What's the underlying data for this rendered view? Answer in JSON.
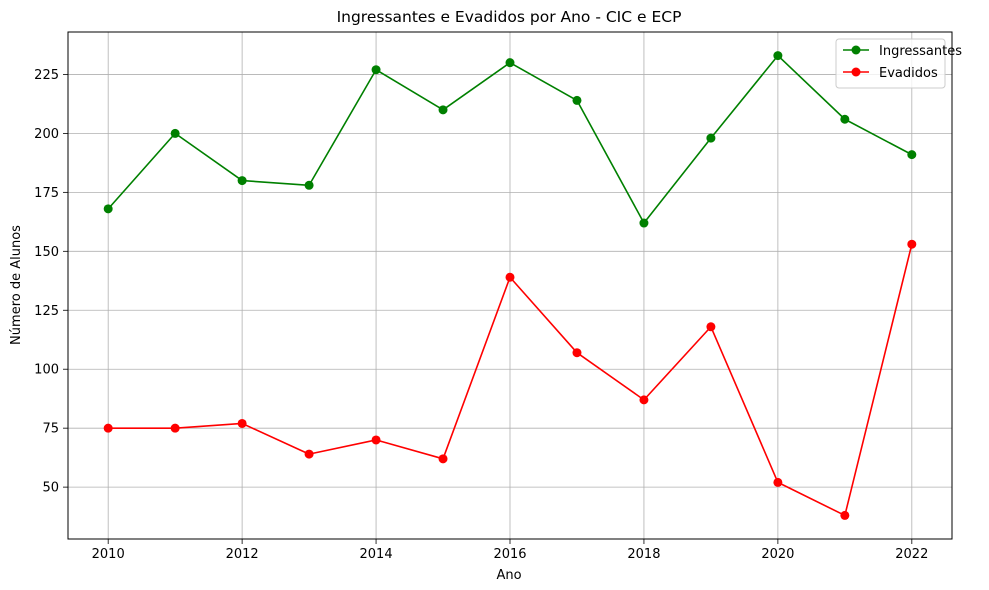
{
  "chart_data": {
    "type": "line",
    "title": "Ingressantes e Evadidos por Ano - CIC e ECP",
    "xlabel": "Ano",
    "ylabel": "Número de Alunos",
    "x": [
      2010,
      2011,
      2012,
      2013,
      2014,
      2015,
      2016,
      2017,
      2018,
      2019,
      2020,
      2021,
      2022
    ],
    "xlim": [
      2009.4,
      2022.6
    ],
    "ylim": [
      28,
      243
    ],
    "xticks": [
      2010,
      2012,
      2014,
      2016,
      2018,
      2020,
      2022
    ],
    "yticks": [
      50,
      75,
      100,
      125,
      150,
      175,
      200,
      225
    ],
    "grid": true,
    "legend_position": "top-right",
    "series": [
      {
        "name": "Ingressantes",
        "color": "#008000",
        "values": [
          168,
          200,
          180,
          178,
          227,
          210,
          230,
          214,
          162,
          198,
          233,
          206,
          191
        ]
      },
      {
        "name": "Evadidos",
        "color": "#ff0000",
        "values": [
          75,
          75,
          77,
          64,
          70,
          62,
          139,
          107,
          87,
          118,
          52,
          38,
          153
        ]
      }
    ]
  }
}
